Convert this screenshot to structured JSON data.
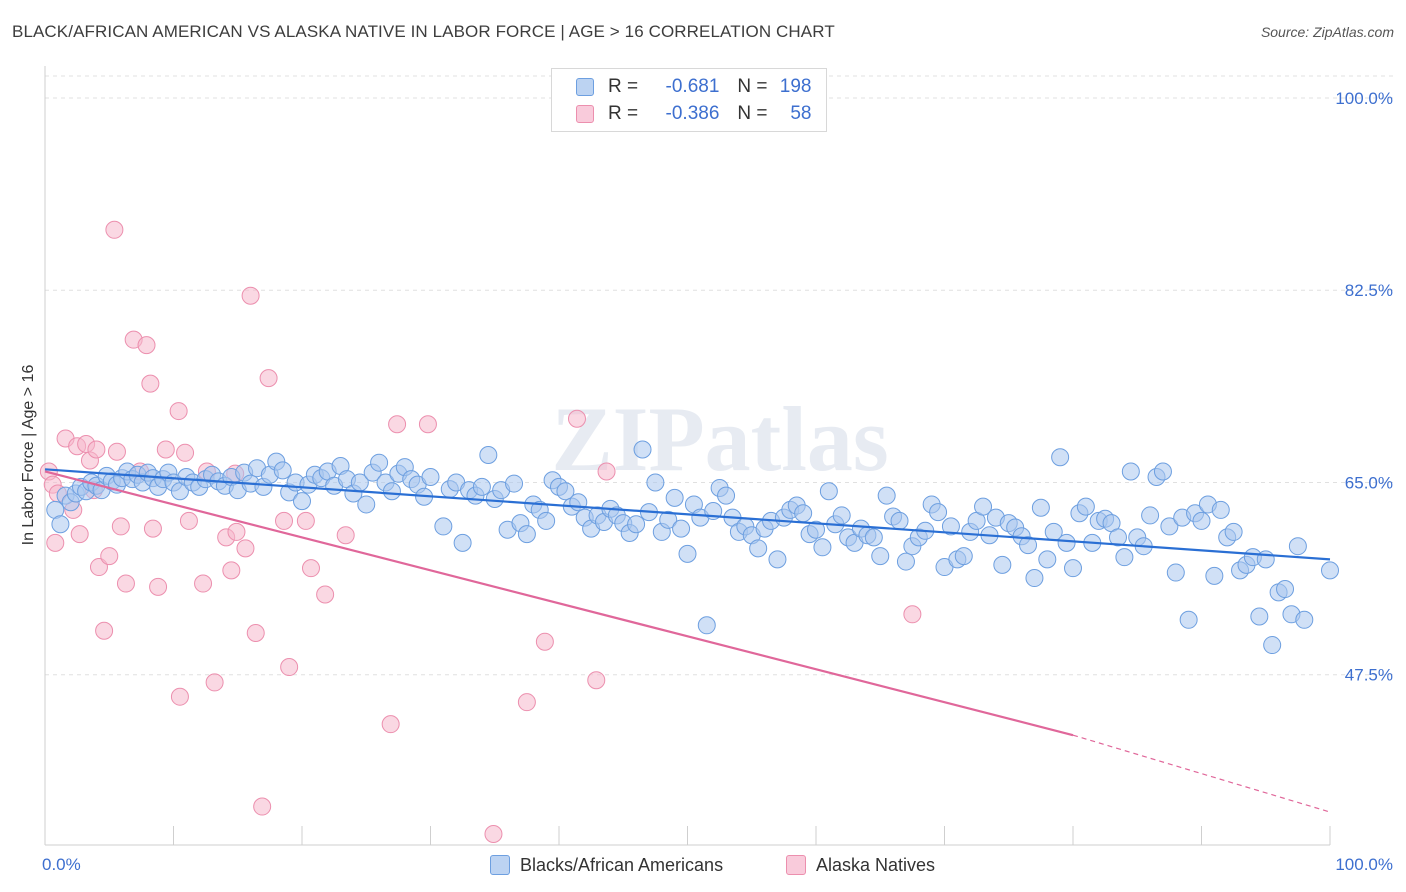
{
  "title": "BLACK/AFRICAN AMERICAN VS ALASKA NATIVE IN LABOR FORCE | AGE > 16 CORRELATION CHART",
  "source": "Source: ZipAtlas.com",
  "watermark": "ZIPatlas",
  "colors": {
    "blue_fill": "#a9c6ee",
    "blue_stroke": "#6d9fe0",
    "blue_line": "#2a6fd4",
    "pink_fill": "#f5b8cc",
    "pink_stroke": "#ec8fae",
    "pink_line": "#e0679a",
    "axis_text": "#3d6fcf",
    "grid": "#e0e0e0"
  },
  "legend": {
    "rows": [
      {
        "r_label": "R =",
        "r_value": "-0.681",
        "n_label": "N =",
        "n_value": "198"
      },
      {
        "r_label": "R =",
        "r_value": "-0.386",
        "n_label": "N =",
        "n_value": "58"
      }
    ]
  },
  "bottom_legend": [
    "Blacks/African Americans",
    "Alaska Natives"
  ],
  "chart_data": {
    "type": "scatter",
    "ylabel": "In Labor Force | Age > 16",
    "xlim": [
      0,
      100
    ],
    "ylim": [
      32,
      102
    ],
    "x_tick_labels": [
      "0.0%",
      "100.0%"
    ],
    "y_ticks": [
      100,
      82.5,
      65,
      47.5
    ],
    "y_tick_labels": [
      "100.0%",
      "82.5%",
      "65.0%",
      "47.5%"
    ],
    "grid": true,
    "series": [
      {
        "name": "Blacks/African Americans",
        "color": "blue",
        "trend": {
          "x": [
            0,
            100
          ],
          "y": [
            66.2,
            58.0
          ]
        },
        "points": [
          [
            0.8,
            62.5
          ],
          [
            1.2,
            61.2
          ],
          [
            1.6,
            63.8
          ],
          [
            2.0,
            63.2
          ],
          [
            2.4,
            64.0
          ],
          [
            2.8,
            64.6
          ],
          [
            3.2,
            64.2
          ],
          [
            3.6,
            65.0
          ],
          [
            4.0,
            64.7
          ],
          [
            4.4,
            64.3
          ],
          [
            4.8,
            65.6
          ],
          [
            5.2,
            65.1
          ],
          [
            5.6,
            64.8
          ],
          [
            6.0,
            65.4
          ],
          [
            6.4,
            66.0
          ],
          [
            6.8,
            65.3
          ],
          [
            7.2,
            65.7
          ],
          [
            7.6,
            65.0
          ],
          [
            8.0,
            65.9
          ],
          [
            8.4,
            65.4
          ],
          [
            8.8,
            64.6
          ],
          [
            9.2,
            65.3
          ],
          [
            9.6,
            65.9
          ],
          [
            10.0,
            65.0
          ],
          [
            10.5,
            64.2
          ],
          [
            11.0,
            65.5
          ],
          [
            11.5,
            65.0
          ],
          [
            12.0,
            64.6
          ],
          [
            12.5,
            65.3
          ],
          [
            13.0,
            65.7
          ],
          [
            13.5,
            65.1
          ],
          [
            14.0,
            64.7
          ],
          [
            14.5,
            65.5
          ],
          [
            15.0,
            64.3
          ],
          [
            15.5,
            65.9
          ],
          [
            16.0,
            64.9
          ],
          [
            16.5,
            66.3
          ],
          [
            17.0,
            64.6
          ],
          [
            17.5,
            65.7
          ],
          [
            18.0,
            66.9
          ],
          [
            18.5,
            66.1
          ],
          [
            19.0,
            64.1
          ],
          [
            19.5,
            65.0
          ],
          [
            20.0,
            63.3
          ],
          [
            20.5,
            64.8
          ],
          [
            21.0,
            65.7
          ],
          [
            21.5,
            65.4
          ],
          [
            22.0,
            66.0
          ],
          [
            22.5,
            64.7
          ],
          [
            23.0,
            66.5
          ],
          [
            23.5,
            65.3
          ],
          [
            24.0,
            64.0
          ],
          [
            24.5,
            65.0
          ],
          [
            25.0,
            63.0
          ],
          [
            25.5,
            65.9
          ],
          [
            26.0,
            66.8
          ],
          [
            26.5,
            65.0
          ],
          [
            27.0,
            64.2
          ],
          [
            27.5,
            65.8
          ],
          [
            28.0,
            66.4
          ],
          [
            28.5,
            65.3
          ],
          [
            29.0,
            64.8
          ],
          [
            29.5,
            63.7
          ],
          [
            30.0,
            65.5
          ],
          [
            31.0,
            61.0
          ],
          [
            31.5,
            64.4
          ],
          [
            32.0,
            65.0
          ],
          [
            32.5,
            59.5
          ],
          [
            33.0,
            64.3
          ],
          [
            33.5,
            63.8
          ],
          [
            34.0,
            64.6
          ],
          [
            34.5,
            67.5
          ],
          [
            35.0,
            63.5
          ],
          [
            35.5,
            64.3
          ],
          [
            36.0,
            60.7
          ],
          [
            36.5,
            64.9
          ],
          [
            37.0,
            61.3
          ],
          [
            37.5,
            60.3
          ],
          [
            38.0,
            63.0
          ],
          [
            38.5,
            62.5
          ],
          [
            39.0,
            61.5
          ],
          [
            39.5,
            65.2
          ],
          [
            40.0,
            64.6
          ],
          [
            40.5,
            64.2
          ],
          [
            41.0,
            62.8
          ],
          [
            41.5,
            63.2
          ],
          [
            42.0,
            61.8
          ],
          [
            42.5,
            60.8
          ],
          [
            43.0,
            62.0
          ],
          [
            43.5,
            61.4
          ],
          [
            44.0,
            62.6
          ],
          [
            44.5,
            62.0
          ],
          [
            45.0,
            61.3
          ],
          [
            45.5,
            60.4
          ],
          [
            46.0,
            61.2
          ],
          [
            46.5,
            68.0
          ],
          [
            47.0,
            62.3
          ],
          [
            47.5,
            65.0
          ],
          [
            48.0,
            60.5
          ],
          [
            48.5,
            61.6
          ],
          [
            49.0,
            63.6
          ],
          [
            49.5,
            60.8
          ],
          [
            50.0,
            58.5
          ],
          [
            50.5,
            63.0
          ],
          [
            51.0,
            61.8
          ],
          [
            51.5,
            52.0
          ],
          [
            52.0,
            62.4
          ],
          [
            52.5,
            64.5
          ],
          [
            53.0,
            63.8
          ],
          [
            53.5,
            61.8
          ],
          [
            54.0,
            60.5
          ],
          [
            54.5,
            61.0
          ],
          [
            55.0,
            60.2
          ],
          [
            55.5,
            59.0
          ],
          [
            56.0,
            60.8
          ],
          [
            56.5,
            61.5
          ],
          [
            57.0,
            58.0
          ],
          [
            57.5,
            61.8
          ],
          [
            58.0,
            62.5
          ],
          [
            58.5,
            62.9
          ],
          [
            59.0,
            62.2
          ],
          [
            59.5,
            60.3
          ],
          [
            60.0,
            60.7
          ],
          [
            60.5,
            59.1
          ],
          [
            61.0,
            64.2
          ],
          [
            61.5,
            61.2
          ],
          [
            62.0,
            62.0
          ],
          [
            62.5,
            60.0
          ],
          [
            63.0,
            59.5
          ],
          [
            63.5,
            60.8
          ],
          [
            64.0,
            60.2
          ],
          [
            64.5,
            60.0
          ],
          [
            65.0,
            58.3
          ],
          [
            65.5,
            63.8
          ],
          [
            66.0,
            61.9
          ],
          [
            66.5,
            61.5
          ],
          [
            67.0,
            57.8
          ],
          [
            67.5,
            59.2
          ],
          [
            68.0,
            60.0
          ],
          [
            68.5,
            60.6
          ],
          [
            69.0,
            63.0
          ],
          [
            69.5,
            62.3
          ],
          [
            70.0,
            57.3
          ],
          [
            70.5,
            61.0
          ],
          [
            71.0,
            58.0
          ],
          [
            71.5,
            58.3
          ],
          [
            72.0,
            60.5
          ],
          [
            72.5,
            61.5
          ],
          [
            73.0,
            62.8
          ],
          [
            73.5,
            60.2
          ],
          [
            74.0,
            61.8
          ],
          [
            74.5,
            57.5
          ],
          [
            75.0,
            61.3
          ],
          [
            75.5,
            60.9
          ],
          [
            76.0,
            60.1
          ],
          [
            76.5,
            59.3
          ],
          [
            77.0,
            56.3
          ],
          [
            77.5,
            62.7
          ],
          [
            78.0,
            58.0
          ],
          [
            78.5,
            60.5
          ],
          [
            79.0,
            67.3
          ],
          [
            79.5,
            59.5
          ],
          [
            80.0,
            57.2
          ],
          [
            80.5,
            62.2
          ],
          [
            81.0,
            62.8
          ],
          [
            81.5,
            59.5
          ],
          [
            82.0,
            61.5
          ],
          [
            82.5,
            61.7
          ],
          [
            83.0,
            61.3
          ],
          [
            83.5,
            60.0
          ],
          [
            84.0,
            58.2
          ],
          [
            84.5,
            66.0
          ],
          [
            85.0,
            60.0
          ],
          [
            85.5,
            59.2
          ],
          [
            86.0,
            62.0
          ],
          [
            86.5,
            65.5
          ],
          [
            87.0,
            66.0
          ],
          [
            87.5,
            61.0
          ],
          [
            88.0,
            56.8
          ],
          [
            88.5,
            61.8
          ],
          [
            89.0,
            52.5
          ],
          [
            89.5,
            62.2
          ],
          [
            90.0,
            61.5
          ],
          [
            90.5,
            63.0
          ],
          [
            91.0,
            56.5
          ],
          [
            91.5,
            62.5
          ],
          [
            92.0,
            60.0
          ],
          [
            92.5,
            60.5
          ],
          [
            93.0,
            57.0
          ],
          [
            93.5,
            57.5
          ],
          [
            94.0,
            58.2
          ],
          [
            94.5,
            52.8
          ],
          [
            95.0,
            58.0
          ],
          [
            95.5,
            50.2
          ],
          [
            96.0,
            55.0
          ],
          [
            96.5,
            55.3
          ],
          [
            97.0,
            53.0
          ],
          [
            97.5,
            59.2
          ],
          [
            98.0,
            52.5
          ],
          [
            100.0,
            57.0
          ]
        ]
      },
      {
        "name": "Alaska Natives",
        "color": "pink",
        "trend": {
          "x": [
            0,
            80
          ],
          "y": [
            66.0,
            42.0
          ]
        },
        "trend_dashed": {
          "x": [
            80,
            100
          ],
          "y": [
            42.0,
            35.0
          ]
        },
        "points": [
          [
            0.3,
            66.0
          ],
          [
            0.6,
            64.8
          ],
          [
            0.8,
            59.5
          ],
          [
            1.0,
            64.0
          ],
          [
            1.6,
            69.0
          ],
          [
            2.2,
            62.5
          ],
          [
            2.5,
            68.3
          ],
          [
            2.7,
            60.3
          ],
          [
            3.2,
            68.5
          ],
          [
            3.5,
            67.0
          ],
          [
            3.8,
            64.3
          ],
          [
            4.0,
            68.0
          ],
          [
            4.2,
            57.3
          ],
          [
            4.6,
            51.5
          ],
          [
            5.0,
            58.3
          ],
          [
            5.4,
            88.0
          ],
          [
            5.6,
            67.8
          ],
          [
            5.9,
            61.0
          ],
          [
            6.3,
            55.8
          ],
          [
            6.9,
            78.0
          ],
          [
            7.4,
            66.0
          ],
          [
            7.9,
            77.5
          ],
          [
            8.2,
            74.0
          ],
          [
            8.4,
            60.8
          ],
          [
            8.8,
            55.5
          ],
          [
            9.4,
            68.0
          ],
          [
            10.4,
            71.5
          ],
          [
            10.5,
            45.5
          ],
          [
            10.9,
            67.7
          ],
          [
            11.2,
            61.5
          ],
          [
            12.3,
            55.8
          ],
          [
            12.6,
            66.0
          ],
          [
            13.2,
            46.8
          ],
          [
            14.1,
            60.0
          ],
          [
            14.5,
            57.0
          ],
          [
            14.8,
            65.8
          ],
          [
            14.9,
            60.5
          ],
          [
            15.6,
            59.0
          ],
          [
            16.0,
            82.0
          ],
          [
            16.4,
            51.3
          ],
          [
            16.9,
            35.5
          ],
          [
            17.4,
            74.5
          ],
          [
            18.6,
            61.5
          ],
          [
            19.0,
            48.2
          ],
          [
            20.3,
            61.5
          ],
          [
            20.7,
            57.2
          ],
          [
            21.8,
            54.8
          ],
          [
            23.4,
            60.2
          ],
          [
            26.9,
            43.0
          ],
          [
            27.4,
            70.3
          ],
          [
            29.8,
            70.3
          ],
          [
            34.9,
            33.0
          ],
          [
            37.5,
            45.0
          ],
          [
            38.9,
            50.5
          ],
          [
            41.4,
            70.8
          ],
          [
            42.9,
            47.0
          ],
          [
            43.7,
            66.0
          ],
          [
            67.5,
            53.0
          ]
        ]
      }
    ]
  }
}
